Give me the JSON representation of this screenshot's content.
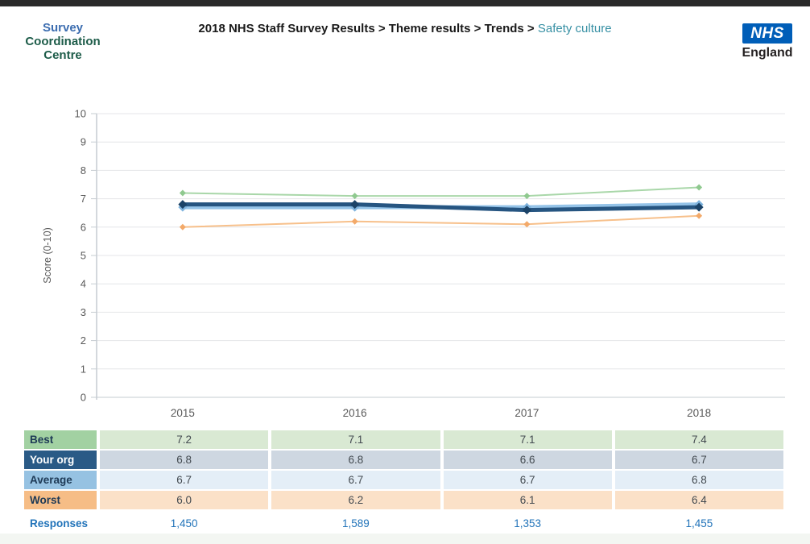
{
  "header": {
    "logo": {
      "line1": "Survey",
      "line2": "Coordination",
      "line3": "Centre"
    },
    "breadcrumb": {
      "path_bold": "2018 NHS Staff Survey Results > Theme results > Trends > ",
      "current": "Safety culture"
    },
    "nhs_logo": {
      "acronym": "NHS",
      "region": "England"
    }
  },
  "chart_data": {
    "type": "line",
    "title": "",
    "xlabel": "",
    "ylabel": "Score (0-10)",
    "ylim": [
      0,
      10
    ],
    "grid": true,
    "legend_position": "table-below",
    "categories": [
      "2015",
      "2016",
      "2017",
      "2018"
    ],
    "series": [
      {
        "name": "Best",
        "values": [
          7.2,
          7.1,
          7.1,
          7.4
        ],
        "color": "#a9d7a9",
        "marker_color": "#8fc98f",
        "line_width": 2,
        "marker_size": 4
      },
      {
        "name": "Your org",
        "values": [
          6.8,
          6.8,
          6.6,
          6.7
        ],
        "color": "#265581",
        "marker_color": "#1b4368",
        "line_width": 5,
        "marker_size": 5.5
      },
      {
        "name": "Average",
        "values": [
          6.7,
          6.7,
          6.7,
          6.8
        ],
        "color": "#94c3e8",
        "marker_color": "#7eb3dd",
        "line_width": 5,
        "marker_size": 5.5
      },
      {
        "name": "Worst",
        "values": [
          6.0,
          6.2,
          6.1,
          6.4
        ],
        "color": "#f7c08b",
        "marker_color": "#f3a969",
        "line_width": 2,
        "marker_size": 4
      }
    ]
  },
  "table": {
    "rows": [
      {
        "label": "Best",
        "values": [
          "7.2",
          "7.1",
          "7.1",
          "7.4"
        ],
        "header_bg": "#a2d1a2",
        "value_bg": "#d9e9d3",
        "label_color": "#1e3a56"
      },
      {
        "label": "Your org",
        "values": [
          "6.8",
          "6.8",
          "6.6",
          "6.7"
        ],
        "header_bg": "#2a5a86",
        "value_bg": "#ced7e1",
        "label_color": "#ffffff"
      },
      {
        "label": "Average",
        "values": [
          "6.7",
          "6.7",
          "6.7",
          "6.8"
        ],
        "header_bg": "#96c2e2",
        "value_bg": "#e4eef7",
        "label_color": "#1e3a56"
      },
      {
        "label": "Worst",
        "values": [
          "6.0",
          "6.2",
          "6.1",
          "6.4"
        ],
        "header_bg": "#f6bd86",
        "value_bg": "#fbe1c8",
        "label_color": "#1e3a56"
      }
    ],
    "responses": {
      "label": "Responses",
      "values": [
        "1,450",
        "1,589",
        "1,353",
        "1,455"
      ]
    }
  },
  "colors": {
    "topbar": "#2a2a2a",
    "nhs_blue": "#005EB8",
    "breadcrumb_current": "#3790a4",
    "axis": "#c6ccd2",
    "gridline": "#e4e6e8",
    "tick_text": "#595959",
    "responses_text": "#2173b9"
  }
}
